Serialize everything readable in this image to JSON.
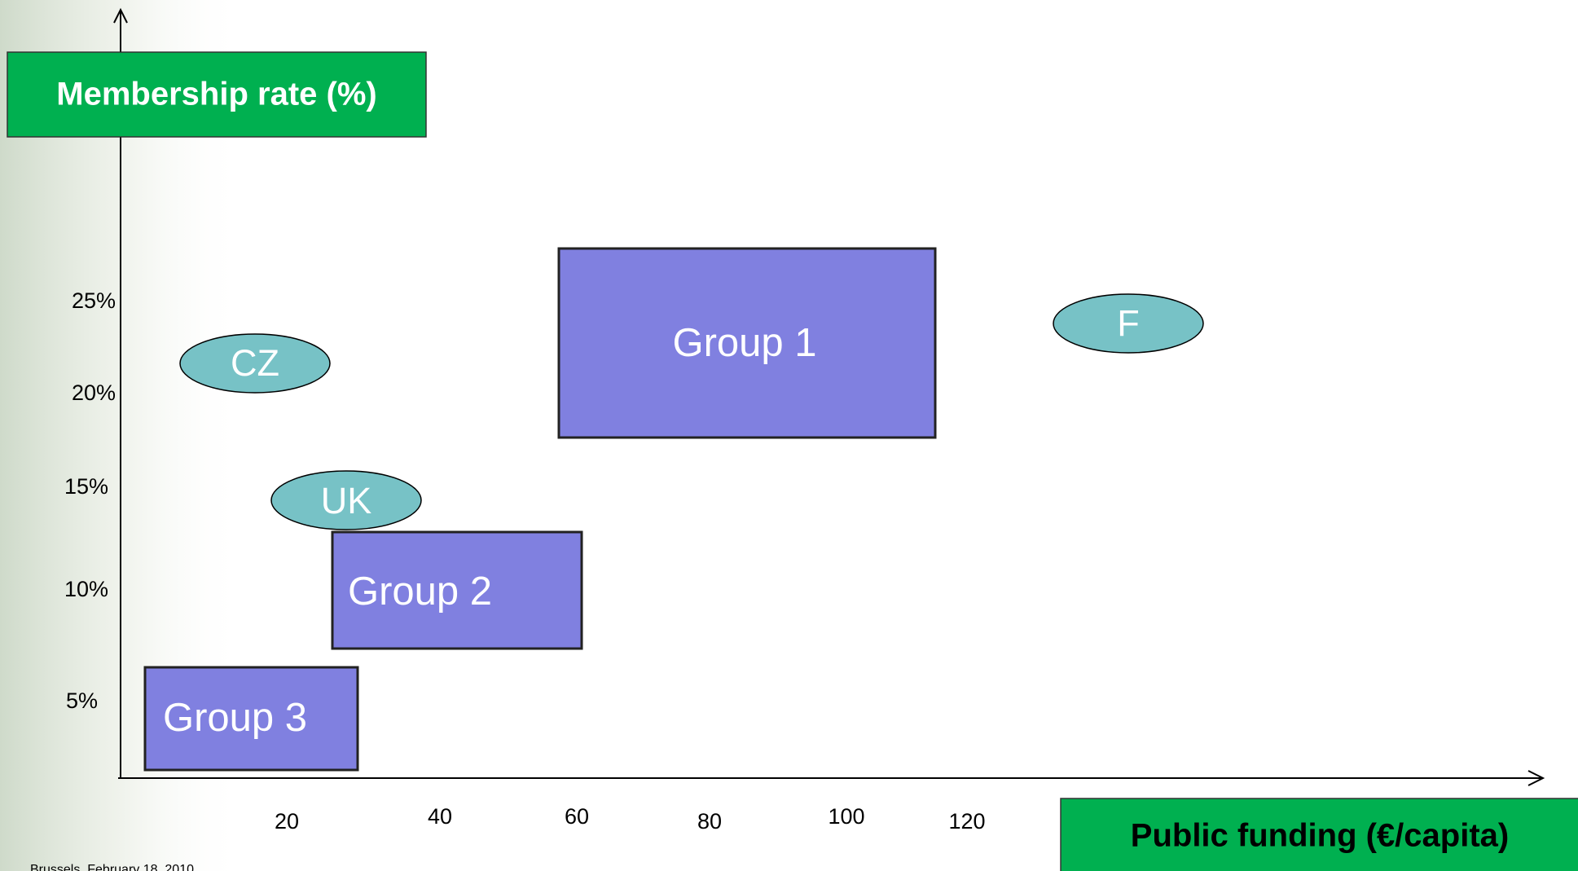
{
  "y_axis_label": "Membership rate (%)",
  "x_axis_label": "Public funding (€/capita)",
  "y_ticks": [
    "25%",
    "20%",
    "15%",
    "10%",
    "5%"
  ],
  "x_ticks": [
    "20",
    "40",
    "60",
    "80",
    "100",
    "120"
  ],
  "groups": [
    "Group 1",
    "Group 2",
    "Group 3"
  ],
  "countries": [
    "CZ",
    "UK",
    "F"
  ],
  "footer": "Brussels, February 18, 2010"
}
